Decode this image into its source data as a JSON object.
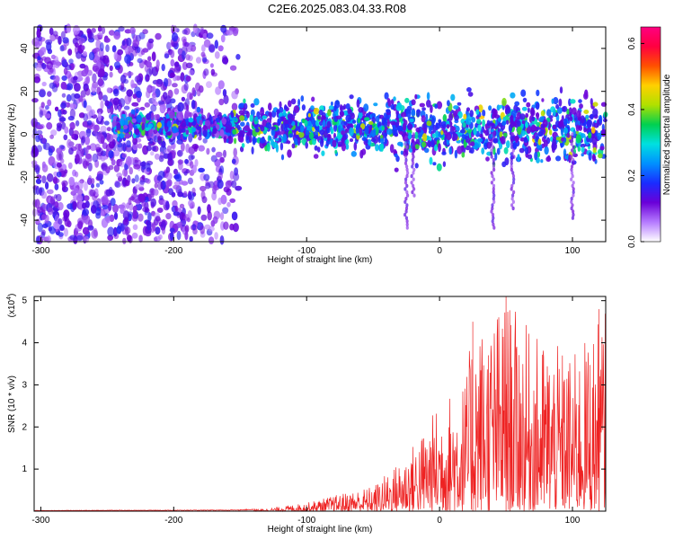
{
  "title": "C2E6.2025.083.04.33.R08",
  "chart_data": [
    {
      "type": "heatmap",
      "name": "spectrogram",
      "xlabel": "Height of straight line (km)",
      "ylabel": "Frequency (Hz)",
      "xlim": [
        -305,
        125
      ],
      "ylim": [
        -50,
        50
      ],
      "xticks": [
        -300,
        -200,
        -100,
        0,
        100
      ],
      "yticks": [
        -40,
        -20,
        0,
        20,
        40
      ],
      "colorbar": {
        "label": "Normalized spectral amplitude",
        "range": [
          0.0,
          0.65
        ],
        "ticks": [
          0.0,
          0.2,
          0.4,
          0.6
        ],
        "tick_labels": [
          "0.0",
          "0.2",
          "0.4",
          "0.6"
        ],
        "colors": [
          "#ffffff",
          "#b57bff",
          "#6a00d8",
          "#1a2cff",
          "#0090ff",
          "#00e0e0",
          "#00d050",
          "#b0e000",
          "#ffd000",
          "#ff5000",
          "#ff0040",
          "#ff0080"
        ]
      },
      "bands": [
        {
          "x": [
            -305,
            -160
          ],
          "center_hz": 0,
          "description": "diffuse scatter across full band"
        },
        {
          "x": [
            -245,
            125
          ],
          "center_hz": 5,
          "description": "bright band near 0 Hz"
        }
      ]
    },
    {
      "type": "line",
      "name": "snr",
      "xlabel": "Height of straight line (km)",
      "ylabel": "SNR (10 * v/v)",
      "y_multiplier": "(x10",
      "y_multiplier_exp": "4",
      "y_multiplier_close": ")",
      "xlim": [
        -305,
        125
      ],
      "ylim": [
        0,
        5.1
      ],
      "xticks": [
        -300,
        -200,
        -100,
        0,
        100
      ],
      "yticks": [
        1,
        2,
        3,
        4,
        5
      ],
      "color": "#ee2222",
      "envelope": [
        {
          "x": -305,
          "y": 0.02
        },
        {
          "x": -160,
          "y": 0.03
        },
        {
          "x": -130,
          "y": 0.06
        },
        {
          "x": -100,
          "y": 0.2
        },
        {
          "x": -70,
          "y": 0.45
        },
        {
          "x": -50,
          "y": 0.6
        },
        {
          "x": -30,
          "y": 1.2
        },
        {
          "x": -15,
          "y": 1.8
        },
        {
          "x": 0,
          "y": 2.6
        },
        {
          "x": 20,
          "y": 3.2
        },
        {
          "x": 25,
          "y": 4.5
        },
        {
          "x": 35,
          "y": 4.5
        },
        {
          "x": 50,
          "y": 5.1
        },
        {
          "x": 70,
          "y": 4.2
        },
        {
          "x": 85,
          "y": 4.0
        },
        {
          "x": 100,
          "y": 3.7
        },
        {
          "x": 115,
          "y": 4.3
        },
        {
          "x": 125,
          "y": 4.8
        }
      ],
      "peaks": [
        {
          "x": 25,
          "y": 4.5
        },
        {
          "x": 50,
          "y": 5.1
        },
        {
          "x": 120,
          "y": 4.8
        }
      ]
    }
  ]
}
